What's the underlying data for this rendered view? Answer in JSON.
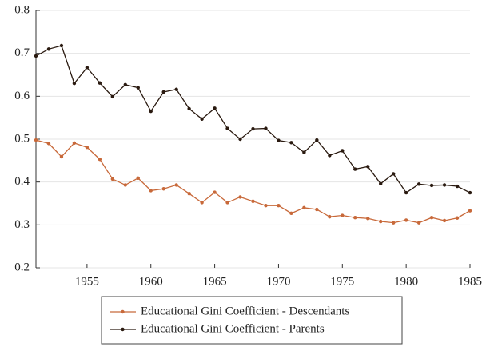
{
  "chart_data": {
    "type": "line",
    "x": [
      1951,
      1952,
      1953,
      1954,
      1955,
      1956,
      1957,
      1958,
      1959,
      1960,
      1961,
      1962,
      1963,
      1964,
      1965,
      1966,
      1967,
      1968,
      1969,
      1970,
      1971,
      1972,
      1973,
      1974,
      1975,
      1976,
      1977,
      1978,
      1979,
      1980,
      1981,
      1982,
      1983,
      1984,
      1985
    ],
    "series": [
      {
        "name": "Educational Gini Coefficient - Descendants",
        "color": "#c8693a",
        "values": [
          0.498,
          0.49,
          0.459,
          0.491,
          0.481,
          0.453,
          0.407,
          0.393,
          0.409,
          0.38,
          0.384,
          0.393,
          0.373,
          0.352,
          0.376,
          0.352,
          0.365,
          0.355,
          0.345,
          0.345,
          0.327,
          0.34,
          0.336,
          0.319,
          0.322,
          0.317,
          0.315,
          0.308,
          0.305,
          0.311,
          0.305,
          0.317,
          0.31,
          0.316,
          0.333
        ]
      },
      {
        "name": "Educational Gini Coefficient - Parents",
        "color": "#2a1a10",
        "values": [
          0.694,
          0.71,
          0.718,
          0.63,
          0.667,
          0.631,
          0.599,
          0.627,
          0.62,
          0.565,
          0.61,
          0.616,
          0.571,
          0.547,
          0.572,
          0.525,
          0.5,
          0.524,
          0.525,
          0.497,
          0.492,
          0.469,
          0.498,
          0.462,
          0.473,
          0.43,
          0.436,
          0.396,
          0.419,
          0.375,
          0.395,
          0.392,
          0.393,
          0.39,
          0.375
        ]
      }
    ],
    "xlim": [
      1951,
      1985
    ],
    "xticks": [
      1955,
      1960,
      1965,
      1970,
      1975,
      1980,
      1985
    ],
    "ylim": [
      0.2,
      0.8
    ],
    "yticks": [
      0.2,
      0.3,
      0.4,
      0.5,
      0.6,
      0.7,
      0.8
    ],
    "grid": true,
    "legend": "bottom"
  }
}
